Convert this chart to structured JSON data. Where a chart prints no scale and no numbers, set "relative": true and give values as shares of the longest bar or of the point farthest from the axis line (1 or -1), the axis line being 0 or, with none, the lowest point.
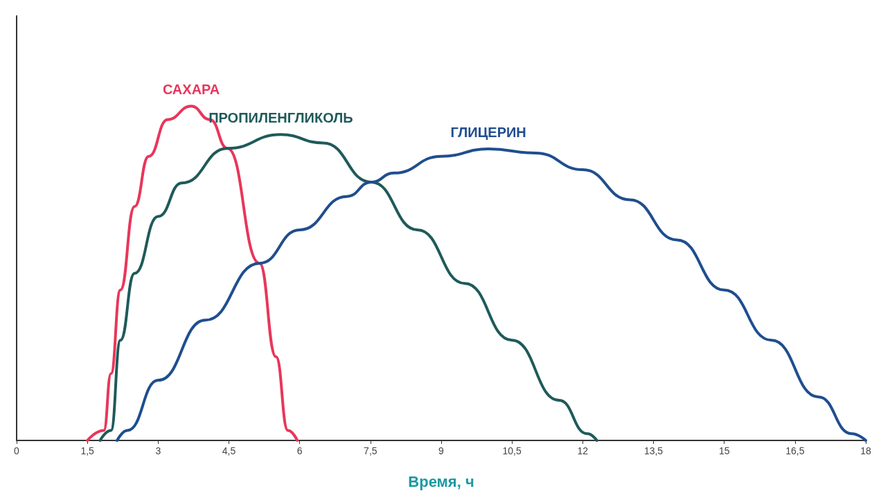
{
  "chart_data": {
    "type": "line",
    "relative": true,
    "xlabel": "Время, ч",
    "xlim": [
      0,
      18
    ],
    "xticks": [
      0,
      {
        "value": 1.5,
        "label": "1,5"
      },
      3,
      {
        "value": 4.5,
        "label": "4,5"
      },
      6,
      {
        "value": 7.5,
        "label": "7,5"
      },
      9,
      {
        "value": 10.5,
        "label": "10,5"
      },
      12,
      {
        "value": 13.5,
        "label": "13,5"
      },
      15,
      {
        "value": 16.5,
        "label": "16,5"
      },
      18
    ],
    "tick_labels": "x",
    "grid": false,
    "legend": false,
    "marker": "none",
    "line_style": "solid",
    "series": [
      {
        "name": "САХАРА",
        "color": "#e8365a",
        "x": [
          1.5,
          1.85,
          2.0,
          2.2,
          2.5,
          2.8,
          3.2,
          3.7,
          4.1,
          4.47,
          5.15,
          5.5,
          5.75,
          5.95
        ],
        "values": [
          0,
          0.03,
          0.2,
          0.45,
          0.7,
          0.85,
          0.96,
          1.0,
          0.96,
          0.874,
          0.53,
          0.25,
          0.03,
          0
        ]
      },
      {
        "name": "ПРОПИЛЕНГЛИКОЛЬ",
        "color": "#1f5a5a",
        "x": [
          1.77,
          2.0,
          2.2,
          2.5,
          3.0,
          3.5,
          4.47,
          5.6,
          6.5,
          7.52,
          8.5,
          9.5,
          10.5,
          11.5,
          12.1,
          12.3
        ],
        "values": [
          0,
          0.03,
          0.3,
          0.5,
          0.67,
          0.77,
          0.874,
          0.915,
          0.89,
          0.773,
          0.63,
          0.47,
          0.3,
          0.12,
          0.02,
          0
        ]
      },
      {
        "name": "ГЛИЦЕРИН",
        "color": "#1f4e8f",
        "x": [
          2.13,
          2.35,
          3,
          4,
          5.15,
          6,
          7,
          7.52,
          8,
          9,
          10,
          11,
          12,
          13,
          14,
          15,
          16,
          17,
          17.7,
          18
        ],
        "values": [
          0,
          0.03,
          0.18,
          0.36,
          0.53,
          0.63,
          0.73,
          0.773,
          0.8,
          0.85,
          0.872,
          0.86,
          0.81,
          0.72,
          0.6,
          0.45,
          0.3,
          0.13,
          0.02,
          0
        ]
      }
    ]
  }
}
